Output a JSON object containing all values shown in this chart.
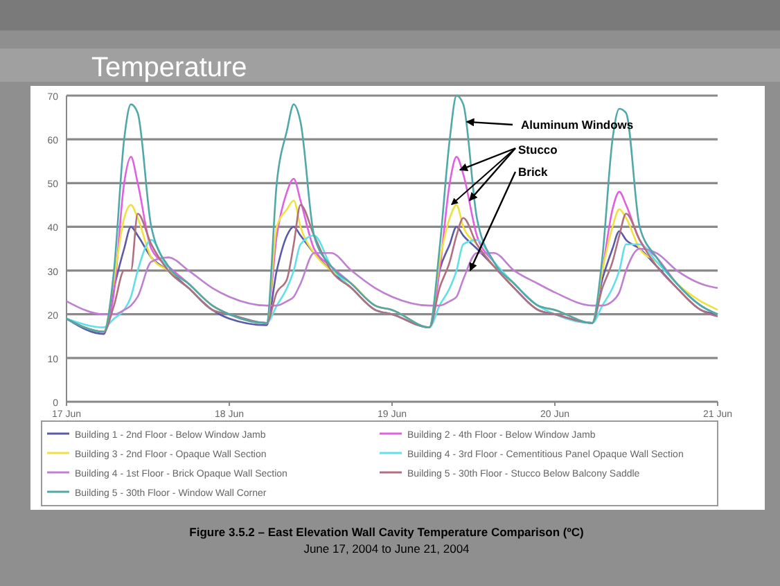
{
  "chart_data": {
    "type": "line",
    "title": "Temperature",
    "x": [
      "2004-06-17T00:00",
      "2004-06-17T05:30",
      "2004-06-17T07:00",
      "2004-06-17T08:30",
      "2004-06-17T09:30",
      "2004-06-17T10:30",
      "2004-06-17T12:30",
      "2004-06-17T15:00",
      "2004-06-17T18:00",
      "2004-06-17T21:30",
      "2004-06-18T00:00",
      "2004-06-18T05:30",
      "2004-06-18T07:00",
      "2004-06-18T08:30",
      "2004-06-18T09:30",
      "2004-06-18T10:30",
      "2004-06-18T12:30",
      "2004-06-18T15:00",
      "2004-06-18T18:00",
      "2004-06-18T21:30",
      "2004-06-19T00:00",
      "2004-06-19T05:30",
      "2004-06-19T07:00",
      "2004-06-19T08:30",
      "2004-06-19T09:30",
      "2004-06-19T10:30",
      "2004-06-19T12:30",
      "2004-06-19T15:00",
      "2004-06-19T18:00",
      "2004-06-19T21:30",
      "2004-06-20T00:00",
      "2004-06-20T05:30",
      "2004-06-20T07:00",
      "2004-06-20T08:30",
      "2004-06-20T09:30",
      "2004-06-20T10:30",
      "2004-06-20T12:30",
      "2004-06-20T15:00",
      "2004-06-20T18:00",
      "2004-06-20T21:30",
      "2004-06-21T00:00"
    ],
    "series": [
      {
        "name": "Building 1 - 2nd Floor - Below Window Jamb",
        "color": "#5a5aa8",
        "values": [
          19,
          15.5,
          26,
          35,
          40,
          38,
          33,
          30,
          26,
          21,
          19,
          17.5,
          30,
          38,
          40,
          38,
          34,
          30,
          26,
          21,
          20,
          17,
          30,
          36,
          40,
          38,
          35,
          31,
          26,
          21,
          20,
          18,
          28,
          35,
          39,
          37,
          35,
          31,
          26,
          21,
          20
        ]
      },
      {
        "name": "Building 2 - 4th Floor - Below Window Jamb",
        "color": "#e060e0",
        "values": [
          19,
          16,
          25,
          50,
          56,
          50,
          35,
          31,
          27,
          22,
          20,
          18,
          38,
          48,
          51,
          46,
          35,
          31,
          27,
          22,
          21,
          17,
          30,
          50,
          56,
          52,
          38,
          32,
          27,
          22,
          21,
          18,
          30,
          44,
          48,
          45,
          37,
          33,
          27,
          22,
          20
        ]
      },
      {
        "name": "Building 3 - 2nd Floor - Opaque Wall Section",
        "color": "#f0e040",
        "values": [
          19,
          16,
          28,
          42,
          45,
          42,
          33,
          30,
          27,
          22,
          20,
          18,
          40,
          44,
          46,
          40,
          34,
          30,
          27,
          22,
          21,
          17,
          32,
          42,
          45,
          40,
          36,
          31,
          27,
          22,
          21,
          18,
          30,
          40,
          44,
          42,
          35,
          32,
          27,
          23,
          21
        ]
      },
      {
        "name": "Building 4 - 3rd Floor - Cementitious Panel Opaque Wall Section",
        "color": "#60e0e8",
        "values": [
          19,
          17,
          19,
          21,
          24,
          30,
          37,
          30,
          26,
          21,
          20,
          18,
          22,
          26,
          30,
          36,
          38,
          31,
          26,
          21,
          20,
          17,
          22,
          26,
          30,
          36,
          37,
          32,
          27,
          22,
          20,
          18,
          22,
          26,
          30,
          36,
          36,
          32,
          27,
          22,
          20
        ]
      },
      {
        "name": "Building 4 - 1st Floor - Brick Opaque Wall Section",
        "color": "#c080d0",
        "values": [
          23,
          20,
          20,
          21,
          22,
          24,
          32,
          33,
          30,
          26,
          24,
          22,
          22,
          23,
          24,
          27,
          34,
          34,
          30,
          26,
          24,
          22,
          22,
          23,
          24,
          28,
          34,
          34,
          30,
          27,
          25,
          22,
          22,
          23,
          25,
          30,
          35,
          34,
          30,
          27,
          26
        ]
      },
      {
        "name": "Building 5 - 30th Floor - Stucco Below Balcony Saddle",
        "color": "#b07080",
        "values": [
          19,
          16,
          22,
          30,
          30,
          43,
          36,
          30,
          26,
          21,
          20,
          18,
          25,
          28,
          36,
          45,
          38,
          30,
          26,
          21,
          20,
          17,
          26,
          32,
          38,
          42,
          36,
          31,
          26,
          21,
          20,
          18,
          26,
          32,
          38,
          43,
          37,
          31,
          26,
          21,
          19.5
        ]
      },
      {
        "name": "Building 5 - 30th Floor - Window Wall Corner",
        "color": "#50a8a8",
        "values": [
          19,
          16,
          30,
          60,
          68,
          66,
          40,
          31,
          27,
          22,
          20,
          18,
          50,
          62,
          68,
          64,
          38,
          31,
          27,
          22,
          21,
          17,
          35,
          60,
          70,
          68,
          42,
          32,
          27,
          22,
          21,
          18,
          33,
          60,
          67,
          66,
          40,
          33,
          27,
          22,
          20
        ]
      }
    ],
    "xlim": [
      "2004-06-17",
      "2004-06-21"
    ],
    "xticks": [
      {
        "value": "2004-06-17",
        "label": "17 Jun"
      },
      {
        "value": "2004-06-18",
        "label": "18 Jun"
      },
      {
        "value": "2004-06-19",
        "label": "19 Jun"
      },
      {
        "value": "2004-06-20",
        "label": "20 Jun"
      },
      {
        "value": "2004-06-21",
        "label": "21 Jun"
      }
    ],
    "ylim": [
      0,
      70
    ],
    "yticks": [
      0,
      10,
      20,
      30,
      40,
      50,
      60,
      70
    ],
    "grid": "y",
    "legend": "bottom",
    "marker": "none",
    "line_style": "solid",
    "annotations": [
      {
        "text": "Aluminum Windows",
        "x": "2004-06-19T11:00",
        "y": 64
      },
      {
        "text": "Stucco",
        "x": "2004-06-19T10:00",
        "y": 53
      },
      {
        "text": "Brick",
        "x": "2004-06-19T11:30",
        "y": 30
      },
      "Figure 3.5.2 – East Elevation Wall Cavity Temperature Comparison (ºC)",
      "June 17, 2004 to June 21, 2004"
    ]
  }
}
